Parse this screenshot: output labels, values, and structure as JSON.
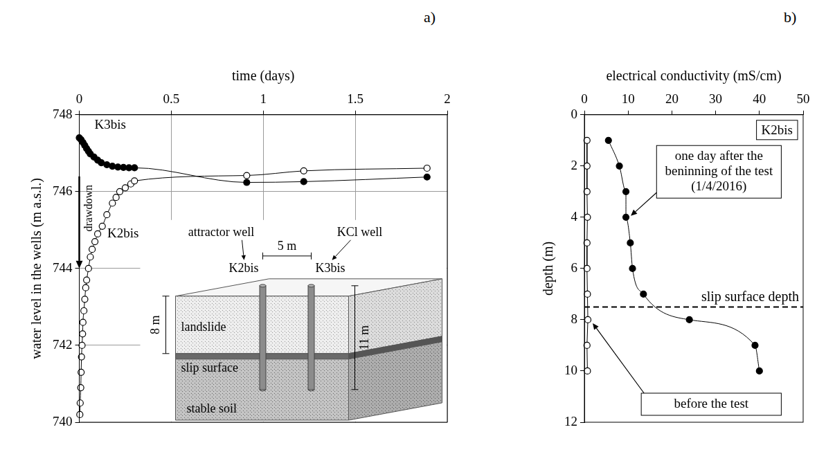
{
  "chart_data": [
    {
      "type": "line",
      "label": "a)",
      "x_label": "time (days)",
      "y_label": "water level in the wells (m a.s.l.)",
      "xlim": [
        0,
        2
      ],
      "xticks": [
        0,
        0.5,
        1,
        1.5,
        2
      ],
      "ylim": [
        740,
        748
      ],
      "yticks": [
        740,
        742,
        744,
        746,
        748
      ],
      "grid": true,
      "series": [
        {
          "name": "K3bis",
          "color": "#000000",
          "marker": "filled_circle",
          "line_style": "solid",
          "x": [
            0,
            0.01,
            0.02,
            0.03,
            0.04,
            0.05,
            0.06,
            0.08,
            0.1,
            0.12,
            0.15,
            0.18,
            0.21,
            0.24,
            0.27,
            0.3,
            0.91,
            1.22,
            1.89
          ],
          "y": [
            747.4,
            747.35,
            747.28,
            747.2,
            747.12,
            747.05,
            746.98,
            746.9,
            746.82,
            746.75,
            746.7,
            746.66,
            746.64,
            746.63,
            746.62,
            746.62,
            746.24,
            746.26,
            746.38
          ]
        },
        {
          "name": "K2bis",
          "color": "#000000",
          "marker": "open_circle",
          "line_style": "solid",
          "x": [
            0.003,
            0.005,
            0.008,
            0.01,
            0.012,
            0.015,
            0.018,
            0.02,
            0.025,
            0.03,
            0.035,
            0.04,
            0.05,
            0.06,
            0.07,
            0.085,
            0.1,
            0.125,
            0.15,
            0.18,
            0.2,
            0.22,
            0.25,
            0.28,
            0.3,
            0.91,
            1.22,
            1.89
          ],
          "y": [
            740.2,
            740.5,
            740.9,
            741.3,
            741.7,
            742.0,
            742.3,
            742.6,
            742.9,
            743.2,
            743.5,
            743.7,
            744.0,
            744.3,
            744.5,
            744.7,
            744.9,
            745.1,
            745.4,
            745.7,
            745.85,
            746.0,
            746.1,
            746.2,
            746.28,
            746.42,
            746.54,
            746.61
          ]
        }
      ],
      "annotations": [
        "drawdown"
      ],
      "inset": {
        "wells": [
          {
            "name": "K2bis",
            "caption": "attractor well"
          },
          {
            "name": "K3bis",
            "caption": "KCl well"
          }
        ],
        "spacing": "5 m",
        "landslide_depth": "8 m",
        "well_depth": "11 m",
        "layers": [
          "landslide",
          "slip surface",
          "stable soil"
        ]
      }
    },
    {
      "type": "line",
      "label": "b)",
      "x_label": "electrical conductivity (mS/cm)",
      "y_label": "depth (m)",
      "xlim": [
        0,
        50
      ],
      "xticks": [
        0,
        10,
        20,
        30,
        40,
        50
      ],
      "ylim": [
        0,
        12
      ],
      "yticks": [
        0,
        2,
        4,
        6,
        8,
        10,
        12
      ],
      "grid": false,
      "box_label": "K2bis",
      "series": [
        {
          "name": "before the test",
          "color": "#000000",
          "marker": "open_circle",
          "line_style": "solid",
          "x": [
            0.6,
            0.6,
            0.6,
            0.7,
            0.6,
            0.6,
            0.7,
            0.8,
            0.6,
            0.7
          ],
          "y": [
            1,
            2,
            3,
            4,
            5,
            6,
            7,
            8,
            9,
            10
          ]
        },
        {
          "name": "one day after the beninning of the test (1/4/2016)",
          "color": "#000000",
          "marker": "filled_circle",
          "line_style": "solid",
          "x": [
            5.5,
            8,
            9.5,
            9.5,
            10.5,
            11,
            13.5,
            24,
            39,
            40
          ],
          "y": [
            1,
            2,
            3,
            4,
            5,
            6,
            7,
            8,
            9,
            10
          ]
        }
      ],
      "reference_line": {
        "value": 7.5,
        "label": "slip surface depth",
        "line_style": "dashed"
      }
    }
  ]
}
